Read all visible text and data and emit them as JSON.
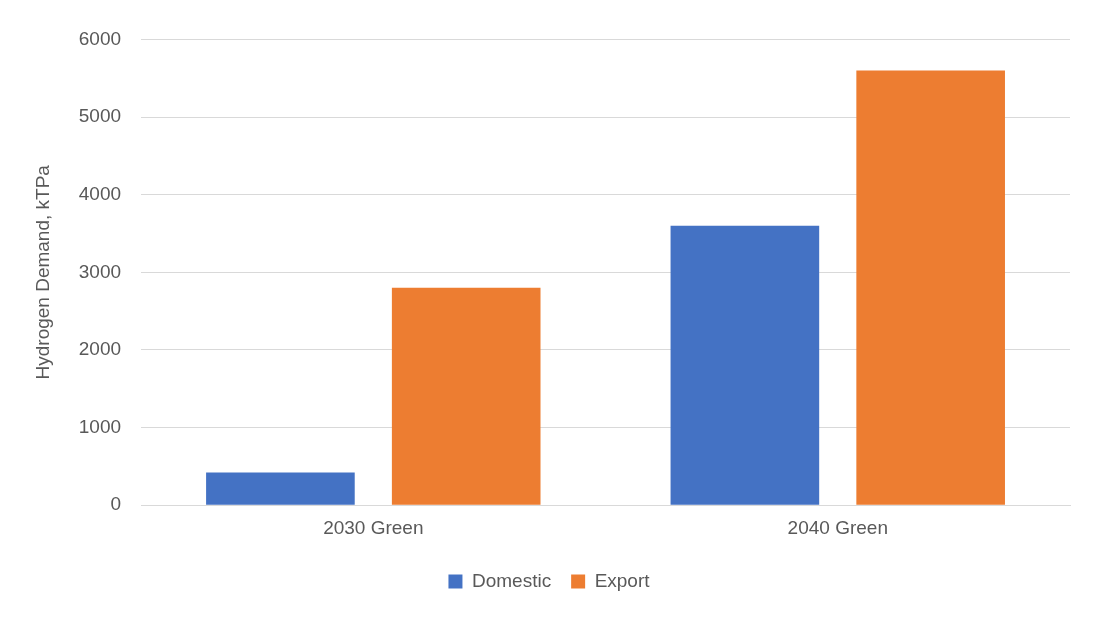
{
  "chart_data": {
    "type": "bar",
    "ylabel": "Hydrogen Demand, kTPa",
    "categories": [
      "2030 Green",
      "2040 Green"
    ],
    "series": [
      {
        "name": "Domestic",
        "color": "#4472c4",
        "values": [
          420,
          3600
        ]
      },
      {
        "name": "Export",
        "color": "#ed7d31",
        "values": [
          2800,
          5600
        ]
      }
    ],
    "ylim": [
      0,
      6000
    ],
    "yticks": [
      0,
      1000,
      2000,
      3000,
      4000,
      5000,
      6000
    ],
    "grid": "y",
    "legend": "bottom"
  }
}
